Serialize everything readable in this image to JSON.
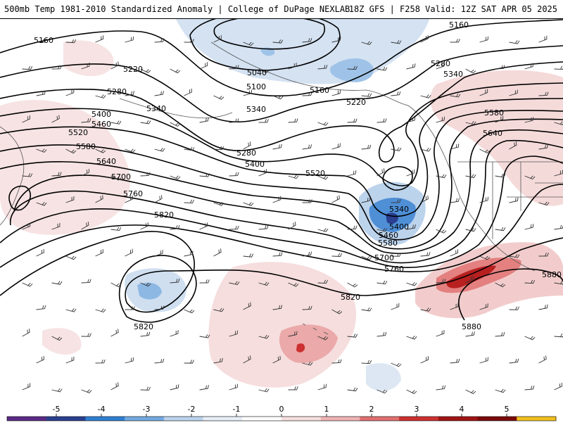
{
  "header": {
    "title": "500mb Temp 1981-2010 Standardized Anomaly | College of DuPage NEXLAB",
    "run_info": "18Z GFS | F258 Valid: 12Z SAT APR 05 2025"
  },
  "colorbar": {
    "ticks": [
      "-5",
      "-4",
      "-3",
      "-2",
      "-1",
      "0",
      "1",
      "2",
      "3",
      "4",
      "5"
    ],
    "colors": [
      "#5b2a86",
      "#2a3f8f",
      "#2f7fd1",
      "#74a9e0",
      "#bcd3ec",
      "#e8eef6",
      "#ffffff",
      "#f6dede",
      "#eeb3b3",
      "#e07070",
      "#cc3030",
      "#a01515",
      "#7a0a0a",
      "#f0c020"
    ]
  },
  "map": {
    "contour_labels": [
      "5040",
      "5100",
      "5160",
      "5220",
      "5280",
      "5340",
      "5400",
      "5460",
      "5520",
      "5580",
      "5640",
      "5700",
      "5760",
      "5820",
      "5880"
    ],
    "labels": [
      {
        "id": "c1",
        "text": "5160"
      },
      {
        "id": "c2",
        "text": "5220"
      },
      {
        "id": "c3",
        "text": "5280"
      },
      {
        "id": "c4",
        "text": "5340"
      },
      {
        "id": "c5",
        "text": "5400"
      },
      {
        "id": "c6",
        "text": "5460"
      },
      {
        "id": "c7",
        "text": "5520"
      },
      {
        "id": "c8",
        "text": "5580"
      },
      {
        "id": "c9",
        "text": "5640"
      },
      {
        "id": "c10",
        "text": "5700"
      },
      {
        "id": "c11",
        "text": "5760"
      },
      {
        "id": "c12",
        "text": "5820"
      },
      {
        "id": "c13",
        "text": "5820"
      },
      {
        "id": "c14",
        "text": "5040"
      },
      {
        "id": "c15",
        "text": "5100"
      },
      {
        "id": "c16",
        "text": "5160"
      },
      {
        "id": "c17",
        "text": "5220"
      },
      {
        "id": "c18",
        "text": "5280"
      },
      {
        "id": "c19",
        "text": "5340"
      },
      {
        "id": "c20",
        "text": "5400"
      },
      {
        "id": "c21",
        "text": "5520"
      },
      {
        "id": "c22",
        "text": "5160"
      },
      {
        "id": "c23",
        "text": "5280"
      },
      {
        "id": "c24",
        "text": "5340"
      },
      {
        "id": "c25",
        "text": "5580"
      },
      {
        "id": "c26",
        "text": "5640"
      },
      {
        "id": "c27",
        "text": "5340"
      },
      {
        "id": "c28",
        "text": "5400"
      },
      {
        "id": "c29",
        "text": "5460"
      },
      {
        "id": "c30",
        "text": "5580"
      },
      {
        "id": "c31",
        "text": "5700"
      },
      {
        "id": "c32",
        "text": "5760"
      },
      {
        "id": "c33",
        "text": "5820"
      },
      {
        "id": "c34",
        "text": "5880"
      },
      {
        "id": "c35",
        "text": "5880"
      }
    ]
  }
}
